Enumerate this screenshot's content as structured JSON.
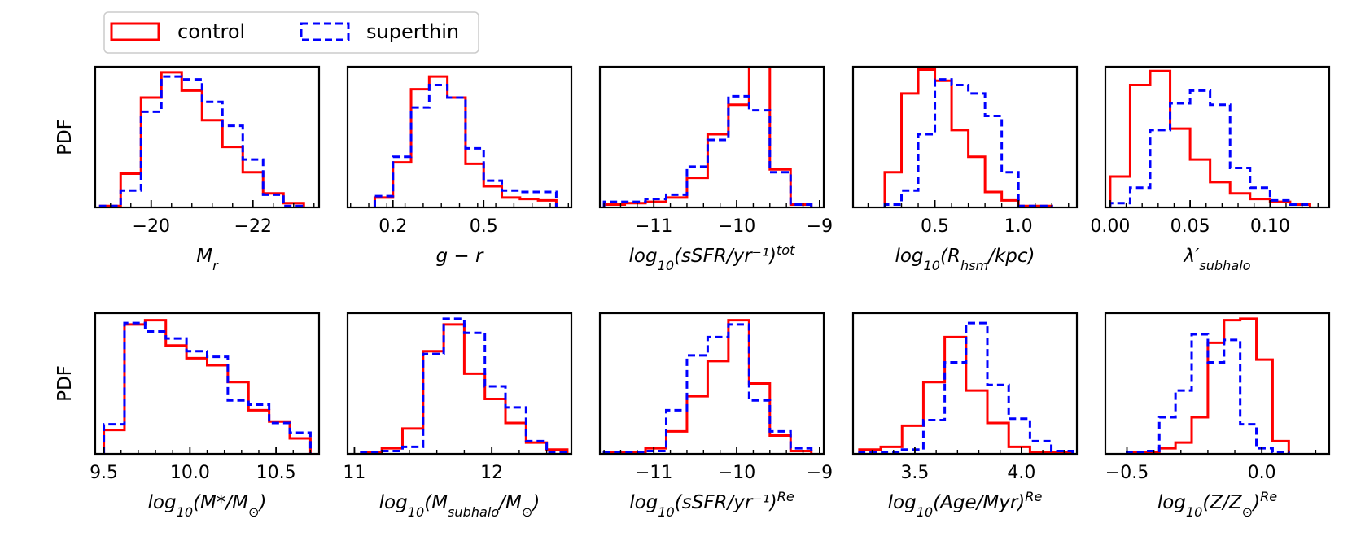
{
  "colors": {
    "control": "#ff0000",
    "superthin": "#0000ff",
    "axes": "#000000",
    "legend_border": "#cccccc"
  },
  "legend": {
    "location": "top-left",
    "entries": [
      {
        "label": "control",
        "style": "solid",
        "color": "#ff0000"
      },
      {
        "label": "superthin",
        "style": "dashed",
        "color": "#0000ff"
      }
    ]
  },
  "chart_data": [
    {
      "type": "histogram",
      "row": 0,
      "col": 0,
      "ylabel": "PDF",
      "xlabel": "M_r",
      "xlim": [
        -18.9,
        -23.3
      ],
      "ylim": [
        0,
        1.0
      ],
      "xticks": [
        -20,
        -22
      ],
      "xtick_labels": [
        "−20",
        "−22"
      ],
      "bin_edges": [
        -19.0,
        -19.4,
        -19.8,
        -20.2,
        -20.6,
        -21.0,
        -21.4,
        -21.8,
        -22.2,
        -22.6,
        -23.0
      ],
      "series": [
        {
          "name": "control",
          "values": [
            0.01,
            0.24,
            0.78,
            0.96,
            0.83,
            0.62,
            0.43,
            0.25,
            0.1,
            0.03
          ]
        },
        {
          "name": "superthin",
          "values": [
            0.01,
            0.12,
            0.68,
            0.93,
            0.91,
            0.75,
            0.58,
            0.34,
            0.09,
            0.01
          ]
        }
      ]
    },
    {
      "type": "histogram",
      "row": 0,
      "col": 1,
      "ylabel": "",
      "xlabel": "g − r",
      "xlim": [
        0.05,
        0.79
      ],
      "ylim": [
        0,
        1.0
      ],
      "xticks": [
        0.2,
        0.5
      ],
      "xtick_labels": [
        "0.2",
        "0.5"
      ],
      "bin_edges": [
        0.14,
        0.2,
        0.26,
        0.32,
        0.38,
        0.44,
        0.5,
        0.56,
        0.62,
        0.68,
        0.74
      ],
      "series": [
        {
          "name": "control",
          "values": [
            0.07,
            0.32,
            0.84,
            0.93,
            0.78,
            0.31,
            0.15,
            0.07,
            0.06,
            0.05
          ]
        },
        {
          "name": "superthin",
          "values": [
            0.08,
            0.36,
            0.71,
            0.87,
            0.78,
            0.42,
            0.19,
            0.12,
            0.11,
            0.11
          ]
        }
      ]
    },
    {
      "type": "histogram",
      "row": 0,
      "col": 2,
      "ylabel": "",
      "xlabel": "log10(sSFR/yr⁻¹)^tot",
      "xlim": [
        -11.65,
        -8.95
      ],
      "ylim": [
        0,
        1.0
      ],
      "xticks": [
        -11,
        -10,
        -9
      ],
      "xtick_labels": [
        "−11",
        "−10",
        "−9"
      ],
      "bin_edges": [
        -11.6,
        -11.35,
        -11.1,
        -10.85,
        -10.6,
        -10.35,
        -10.1,
        -9.85,
        -9.6,
        -9.35,
        -9.1
      ],
      "series": [
        {
          "name": "control",
          "values": [
            0.02,
            0.03,
            0.04,
            0.07,
            0.21,
            0.52,
            0.73,
            1.0,
            0.27,
            0.02
          ]
        },
        {
          "name": "superthin",
          "values": [
            0.04,
            0.04,
            0.06,
            0.09,
            0.29,
            0.48,
            0.79,
            0.69,
            0.25,
            0.02
          ]
        }
      ]
    },
    {
      "type": "histogram",
      "row": 0,
      "col": 3,
      "ylabel": "",
      "xlabel": "log10(R_hsm/kpc)",
      "xlim": [
        0.01,
        1.35
      ],
      "ylim": [
        0,
        1.0
      ],
      "xticks": [
        0.5,
        1.0
      ],
      "xtick_labels": [
        "0.5",
        "1.0"
      ],
      "bin_edges": [
        0.2,
        0.3,
        0.4,
        0.5,
        0.6,
        0.7,
        0.8,
        0.9,
        1.0,
        1.1,
        1.2
      ],
      "series": [
        {
          "name": "control",
          "values": [
            0.25,
            0.81,
            0.98,
            0.9,
            0.55,
            0.36,
            0.11,
            0.05,
            0.01,
            0.01
          ]
        },
        {
          "name": "superthin",
          "values": [
            0.02,
            0.12,
            0.52,
            0.91,
            0.87,
            0.81,
            0.65,
            0.25,
            0.01,
            0.01
          ]
        }
      ]
    },
    {
      "type": "histogram",
      "row": 0,
      "col": 4,
      "ylabel": "",
      "xlabel": "λ′_subhalo",
      "xlim": [
        -0.003,
        0.137
      ],
      "ylim": [
        0,
        1.0
      ],
      "xticks": [
        0.0,
        0.05,
        0.1
      ],
      "xtick_labels": [
        "0.00",
        "0.05",
        "0.10"
      ],
      "bin_edges": [
        0.0,
        0.0125,
        0.025,
        0.0375,
        0.05,
        0.0625,
        0.075,
        0.0875,
        0.1,
        0.1125,
        0.125
      ],
      "series": [
        {
          "name": "control",
          "values": [
            0.22,
            0.87,
            0.97,
            0.56,
            0.34,
            0.18,
            0.1,
            0.06,
            0.04,
            0.02
          ]
        },
        {
          "name": "superthin",
          "values": [
            0.03,
            0.14,
            0.55,
            0.74,
            0.83,
            0.73,
            0.28,
            0.14,
            0.05,
            0.02
          ]
        }
      ]
    },
    {
      "type": "histogram",
      "row": 1,
      "col": 0,
      "ylabel": "PDF",
      "xlabel": "log10(M*/M⊙)",
      "xlim": [
        9.45,
        10.75
      ],
      "ylim": [
        0,
        1.0
      ],
      "xticks": [
        9.5,
        10.0,
        10.5
      ],
      "xtick_labels": [
        "9.5",
        "10.0",
        "10.5"
      ],
      "bin_edges": [
        9.5,
        9.62,
        9.74,
        9.86,
        9.98,
        10.1,
        10.22,
        10.34,
        10.46,
        10.58,
        10.7
      ],
      "series": [
        {
          "name": "control",
          "values": [
            0.17,
            0.92,
            0.95,
            0.77,
            0.68,
            0.63,
            0.51,
            0.31,
            0.23,
            0.11
          ]
        },
        {
          "name": "superthin",
          "values": [
            0.21,
            0.93,
            0.87,
            0.82,
            0.73,
            0.69,
            0.38,
            0.35,
            0.22,
            0.15
          ]
        }
      ]
    },
    {
      "type": "histogram",
      "row": 1,
      "col": 1,
      "ylabel": "",
      "xlabel": "log10(M_subhalo/M⊙)",
      "xlim": [
        10.95,
        12.58
      ],
      "ylim": [
        0,
        1.0
      ],
      "xticks": [
        11,
        12
      ],
      "xtick_labels": [
        "11",
        "12"
      ],
      "bin_edges": [
        11.05,
        11.2,
        11.35,
        11.5,
        11.65,
        11.8,
        11.95,
        12.1,
        12.25,
        12.4,
        12.55
      ],
      "series": [
        {
          "name": "control",
          "values": [
            0.01,
            0.04,
            0.18,
            0.73,
            0.92,
            0.57,
            0.39,
            0.22,
            0.08,
            0.03
          ]
        },
        {
          "name": "superthin",
          "values": [
            0.01,
            0.02,
            0.05,
            0.71,
            0.96,
            0.86,
            0.48,
            0.33,
            0.09,
            0.01
          ]
        }
      ]
    },
    {
      "type": "histogram",
      "row": 1,
      "col": 2,
      "ylabel": "",
      "xlabel": "log10(sSFR/yr⁻¹)^Re",
      "xlim": [
        -11.65,
        -8.95
      ],
      "ylim": [
        0,
        1.0
      ],
      "xticks": [
        -11,
        -10,
        -9
      ],
      "xtick_labels": [
        "−11",
        "−10",
        "−9"
      ],
      "bin_edges": [
        -11.6,
        -11.35,
        -11.1,
        -10.85,
        -10.6,
        -10.35,
        -10.1,
        -9.85,
        -9.6,
        -9.35,
        -9.1
      ],
      "series": [
        {
          "name": "control",
          "values": [
            0.01,
            0.01,
            0.04,
            0.16,
            0.41,
            0.66,
            0.95,
            0.5,
            0.13,
            0.02
          ]
        },
        {
          "name": "superthin",
          "values": [
            0.01,
            0.01,
            0.02,
            0.31,
            0.7,
            0.83,
            0.92,
            0.38,
            0.16,
            0.04
          ]
        }
      ]
    },
    {
      "type": "histogram",
      "row": 1,
      "col": 3,
      "ylabel": "",
      "xlabel": "log10(Age/Myr)^Re",
      "xlim": [
        3.21,
        4.26
      ],
      "ylim": [
        0,
        1.0
      ],
      "xticks": [
        3.5,
        4.0
      ],
      "xtick_labels": [
        "3.5",
        "4.0"
      ],
      "bin_edges": [
        3.24,
        3.34,
        3.44,
        3.54,
        3.64,
        3.74,
        3.84,
        3.94,
        4.04,
        4.14,
        4.24
      ],
      "series": [
        {
          "name": "control",
          "values": [
            0.03,
            0.05,
            0.2,
            0.51,
            0.83,
            0.45,
            0.22,
            0.05,
            0.01,
            0.01
          ]
        },
        {
          "name": "superthin",
          "values": [
            0.01,
            0.01,
            0.03,
            0.24,
            0.65,
            0.93,
            0.49,
            0.25,
            0.09,
            0.02
          ]
        }
      ]
    },
    {
      "type": "histogram",
      "row": 1,
      "col": 4,
      "ylabel": "",
      "xlabel": "log10(Z/Z⊙)^Re",
      "xlim": [
        -0.58,
        0.25
      ],
      "ylim": [
        0,
        1.0
      ],
      "xticks": [
        -0.5,
        0.0
      ],
      "xtick_labels": [
        "−0.5",
        "0.0"
      ],
      "bin_edges": [
        -0.5,
        -0.44,
        -0.38,
        -0.32,
        -0.26,
        -0.2,
        -0.14,
        -0.08,
        -0.02,
        0.04,
        0.1
      ],
      "series": [
        {
          "name": "control",
          "values": [
            0.01,
            0.01,
            0.04,
            0.08,
            0.26,
            0.79,
            0.95,
            0.96,
            0.67,
            0.09
          ]
        },
        {
          "name": "superthin",
          "values": [
            0.01,
            0.02,
            0.26,
            0.45,
            0.85,
            0.65,
            0.81,
            0.21,
            0.04,
            0.01
          ]
        }
      ]
    }
  ]
}
